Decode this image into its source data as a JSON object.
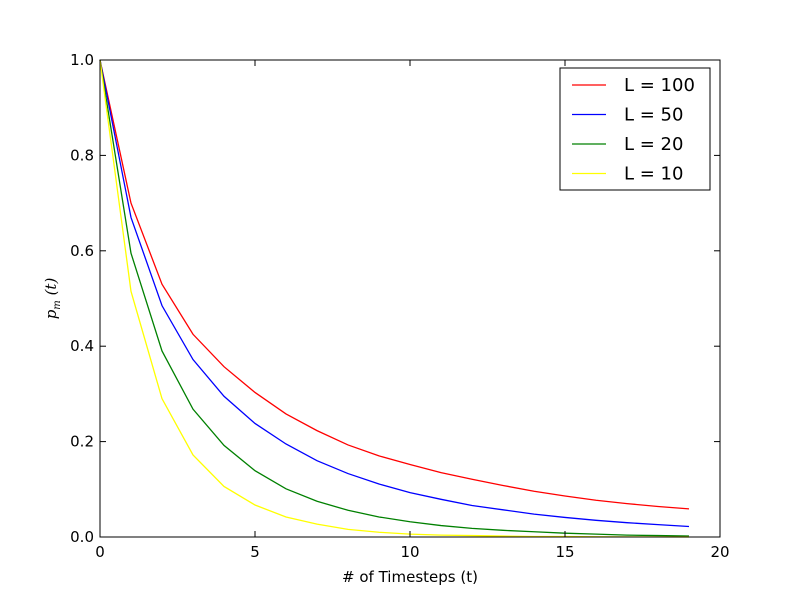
{
  "chart_data": {
    "type": "line",
    "title": "",
    "xlabel": "# of Timesteps (t)",
    "ylabel": "p_m (t)",
    "ylabel_main": "p",
    "ylabel_sub": "m",
    "ylabel_rest": " (t)",
    "xlim": [
      0,
      20
    ],
    "ylim": [
      0.0,
      1.0
    ],
    "xticks": [
      "0",
      "5",
      "10",
      "15",
      "20"
    ],
    "yticks": [
      "0.0",
      "0.2",
      "0.4",
      "0.6",
      "0.8",
      "1.0"
    ],
    "grid": false,
    "legend_position": "top-right",
    "x": [
      0,
      1,
      2,
      3,
      4,
      5,
      6,
      7,
      8,
      9,
      10,
      11,
      12,
      13,
      14,
      15,
      16,
      17,
      18,
      19
    ],
    "series": [
      {
        "name": "L = 100",
        "color": "#ff0000",
        "values": [
          1.0,
          0.7,
          0.53,
          0.425,
          0.357,
          0.303,
          0.258,
          0.223,
          0.193,
          0.17,
          0.152,
          0.135,
          0.121,
          0.108,
          0.096,
          0.086,
          0.077,
          0.07,
          0.064,
          0.059
        ]
      },
      {
        "name": "L = 50",
        "color": "#0000ff",
        "values": [
          1.0,
          0.67,
          0.485,
          0.372,
          0.295,
          0.238,
          0.195,
          0.16,
          0.133,
          0.111,
          0.093,
          0.079,
          0.066,
          0.057,
          0.048,
          0.041,
          0.035,
          0.03,
          0.026,
          0.022
        ]
      },
      {
        "name": "L = 20",
        "color": "#008000",
        "values": [
          1.0,
          0.595,
          0.39,
          0.268,
          0.192,
          0.139,
          0.101,
          0.075,
          0.056,
          0.042,
          0.032,
          0.024,
          0.018,
          0.014,
          0.011,
          0.008,
          0.006,
          0.004,
          0.003,
          0.002
        ]
      },
      {
        "name": "L = 10",
        "color": "#ffff00",
        "values": [
          1.0,
          0.515,
          0.29,
          0.172,
          0.106,
          0.067,
          0.042,
          0.027,
          0.016,
          0.01,
          0.006,
          0.004,
          0.003,
          0.002,
          0.001,
          0.001,
          0.0005,
          0.0003,
          0.0002,
          0.0001
        ]
      }
    ]
  }
}
